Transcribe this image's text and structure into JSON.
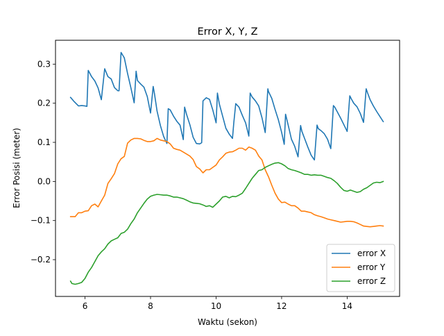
{
  "chart_data": {
    "type": "line",
    "title": "Error X, Y, Z",
    "xlabel": "Waktu (sekon)",
    "ylabel": "Error Posisi (meter)",
    "xlim": [
      5.1,
      15.6
    ],
    "ylim": [
      -0.294,
      0.361
    ],
    "xticks": [
      6,
      8,
      10,
      12,
      14
    ],
    "yticks": [
      -0.2,
      -0.1,
      0.0,
      0.1,
      0.2,
      0.3
    ],
    "ytick_labels": [
      "−0.2",
      "−0.1",
      "0.0",
      "0.1",
      "0.2",
      "0.3"
    ],
    "grid": false,
    "legend_position": "lower-right",
    "series": [
      {
        "name": "error X",
        "color": "#1f77b4",
        "x": [
          5.56,
          5.66,
          5.8,
          5.9,
          6.0,
          6.06,
          6.1,
          6.2,
          6.3,
          6.4,
          6.5,
          6.6,
          6.7,
          6.8,
          6.9,
          7.0,
          7.04,
          7.1,
          7.2,
          7.3,
          7.4,
          7.5,
          7.56,
          7.6,
          7.7,
          7.8,
          7.9,
          8.0,
          8.08,
          8.12,
          8.2,
          8.3,
          8.4,
          8.5,
          8.54,
          8.6,
          8.7,
          8.8,
          8.9,
          9.0,
          9.04,
          9.1,
          9.2,
          9.3,
          9.4,
          9.5,
          9.56,
          9.6,
          9.7,
          9.8,
          9.9,
          10.0,
          10.04,
          10.1,
          10.2,
          10.3,
          10.4,
          10.5,
          10.54,
          10.6,
          10.7,
          10.8,
          10.9,
          11.0,
          11.04,
          11.1,
          11.2,
          11.3,
          11.4,
          11.5,
          11.58,
          11.6,
          11.7,
          11.8,
          11.9,
          12.0,
          12.08,
          12.12,
          12.2,
          12.3,
          12.4,
          12.5,
          12.58,
          12.62,
          12.7,
          12.8,
          12.9,
          13.0,
          13.08,
          13.12,
          13.2,
          13.3,
          13.4,
          13.5,
          13.58,
          13.62,
          13.7,
          13.8,
          13.9,
          14.0,
          14.08,
          14.12,
          14.2,
          14.3,
          14.4,
          14.5,
          14.58,
          14.62,
          14.7,
          14.8,
          14.9,
          15.0,
          15.1
        ],
        "y": [
          0.215,
          0.205,
          0.193,
          0.194,
          0.193,
          0.192,
          0.284,
          0.268,
          0.257,
          0.239,
          0.209,
          0.288,
          0.268,
          0.262,
          0.24,
          0.232,
          0.232,
          0.33,
          0.316,
          0.276,
          0.24,
          0.201,
          0.282,
          0.258,
          0.249,
          0.241,
          0.217,
          0.175,
          0.243,
          0.224,
          0.18,
          0.143,
          0.115,
          0.097,
          0.186,
          0.183,
          0.167,
          0.154,
          0.144,
          0.107,
          0.19,
          0.171,
          0.145,
          0.113,
          0.097,
          0.096,
          0.099,
          0.206,
          0.214,
          0.21,
          0.183,
          0.15,
          0.226,
          0.198,
          0.167,
          0.136,
          0.121,
          0.11,
          0.15,
          0.199,
          0.19,
          0.169,
          0.15,
          0.116,
          0.226,
          0.216,
          0.206,
          0.193,
          0.163,
          0.125,
          0.237,
          0.23,
          0.212,
          0.184,
          0.158,
          0.126,
          0.095,
          0.172,
          0.144,
          0.108,
          0.09,
          0.063,
          0.143,
          0.128,
          0.11,
          0.088,
          0.067,
          0.055,
          0.144,
          0.135,
          0.13,
          0.122,
          0.108,
          0.084,
          0.194,
          0.19,
          0.178,
          0.162,
          0.145,
          0.128,
          0.219,
          0.212,
          0.2,
          0.191,
          0.174,
          0.151,
          0.237,
          0.227,
          0.209,
          0.193,
          0.179,
          0.166,
          0.153
        ]
      },
      {
        "name": "error Y",
        "color": "#ff7f0e",
        "x": [
          5.56,
          5.7,
          5.8,
          5.9,
          6.0,
          6.1,
          6.2,
          6.3,
          6.4,
          6.5,
          6.6,
          6.7,
          6.8,
          6.9,
          7.0,
          7.1,
          7.2,
          7.3,
          7.4,
          7.5,
          7.6,
          7.7,
          7.8,
          7.9,
          8.0,
          8.1,
          8.2,
          8.3,
          8.4,
          8.5,
          8.6,
          8.7,
          8.8,
          8.9,
          9.0,
          9.1,
          9.2,
          9.3,
          9.4,
          9.5,
          9.6,
          9.7,
          9.8,
          9.9,
          10.0,
          10.1,
          10.2,
          10.3,
          10.4,
          10.5,
          10.6,
          10.7,
          10.8,
          10.9,
          11.0,
          11.1,
          11.2,
          11.3,
          11.4,
          11.5,
          11.6,
          11.7,
          11.8,
          11.9,
          12.0,
          12.1,
          12.2,
          12.3,
          12.4,
          12.5,
          12.6,
          12.7,
          12.8,
          12.9,
          13.0,
          13.1,
          13.2,
          13.3,
          13.4,
          13.5,
          13.6,
          13.7,
          13.8,
          13.9,
          14.0,
          14.1,
          14.2,
          14.3,
          14.4,
          14.5,
          14.6,
          14.7,
          14.8,
          14.9,
          15.0,
          15.1
        ],
        "y": [
          -0.09,
          -0.09,
          -0.08,
          -0.08,
          -0.076,
          -0.075,
          -0.062,
          -0.058,
          -0.065,
          -0.05,
          -0.035,
          -0.005,
          0.007,
          0.02,
          0.045,
          0.058,
          0.064,
          0.098,
          0.106,
          0.11,
          0.11,
          0.109,
          0.105,
          0.102,
          0.102,
          0.104,
          0.11,
          0.106,
          0.104,
          0.102,
          0.096,
          0.085,
          0.082,
          0.08,
          0.075,
          0.07,
          0.065,
          0.056,
          0.038,
          0.032,
          0.022,
          0.03,
          0.03,
          0.036,
          0.042,
          0.055,
          0.063,
          0.072,
          0.075,
          0.076,
          0.08,
          0.085,
          0.085,
          0.08,
          0.088,
          0.085,
          0.08,
          0.065,
          0.055,
          0.03,
          0.012,
          -0.01,
          -0.03,
          -0.045,
          -0.054,
          -0.053,
          -0.058,
          -0.062,
          -0.062,
          -0.068,
          -0.076,
          -0.076,
          -0.078,
          -0.08,
          -0.085,
          -0.088,
          -0.09,
          -0.093,
          -0.096,
          -0.098,
          -0.1,
          -0.102,
          -0.104,
          -0.103,
          -0.102,
          -0.102,
          -0.103,
          -0.106,
          -0.11,
          -0.114,
          -0.115,
          -0.116,
          -0.115,
          -0.114,
          -0.113,
          -0.114
        ]
      },
      {
        "name": "error Z",
        "color": "#2ca02c",
        "x": [
          5.56,
          5.6,
          5.7,
          5.8,
          5.9,
          6.0,
          6.1,
          6.2,
          6.3,
          6.4,
          6.5,
          6.6,
          6.7,
          6.8,
          6.9,
          7.0,
          7.1,
          7.2,
          7.3,
          7.4,
          7.5,
          7.6,
          7.7,
          7.8,
          7.9,
          8.0,
          8.1,
          8.2,
          8.3,
          8.4,
          8.5,
          8.6,
          8.7,
          8.8,
          8.9,
          9.0,
          9.1,
          9.2,
          9.3,
          9.4,
          9.5,
          9.6,
          9.7,
          9.8,
          9.9,
          10.0,
          10.1,
          10.2,
          10.3,
          10.4,
          10.5,
          10.6,
          10.7,
          10.8,
          10.9,
          11.0,
          11.1,
          11.2,
          11.3,
          11.4,
          11.5,
          11.6,
          11.7,
          11.8,
          11.9,
          12.0,
          12.1,
          12.2,
          12.3,
          12.4,
          12.5,
          12.6,
          12.7,
          12.8,
          12.9,
          13.0,
          13.1,
          13.2,
          13.3,
          13.4,
          13.5,
          13.6,
          13.7,
          13.8,
          13.9,
          14.0,
          14.1,
          14.2,
          14.3,
          14.4,
          14.5,
          14.6,
          14.7,
          14.8,
          14.9,
          15.0,
          15.1
        ],
        "y": [
          -0.255,
          -0.261,
          -0.263,
          -0.261,
          -0.258,
          -0.248,
          -0.232,
          -0.22,
          -0.205,
          -0.19,
          -0.18,
          -0.172,
          -0.16,
          -0.152,
          -0.148,
          -0.144,
          -0.133,
          -0.13,
          -0.122,
          -0.108,
          -0.096,
          -0.08,
          -0.068,
          -0.056,
          -0.045,
          -0.038,
          -0.035,
          -0.033,
          -0.034,
          -0.035,
          -0.035,
          -0.037,
          -0.04,
          -0.04,
          -0.042,
          -0.044,
          -0.048,
          -0.052,
          -0.055,
          -0.056,
          -0.057,
          -0.06,
          -0.064,
          -0.062,
          -0.066,
          -0.058,
          -0.05,
          -0.04,
          -0.038,
          -0.042,
          -0.038,
          -0.039,
          -0.035,
          -0.03,
          -0.018,
          -0.005,
          0.008,
          0.018,
          0.028,
          0.03,
          0.036,
          0.04,
          0.044,
          0.047,
          0.048,
          0.045,
          0.04,
          0.033,
          0.03,
          0.028,
          0.025,
          0.022,
          0.018,
          0.018,
          0.016,
          0.017,
          0.016,
          0.016,
          0.013,
          0.01,
          0.008,
          0.002,
          -0.005,
          -0.015,
          -0.023,
          -0.025,
          -0.022,
          -0.025,
          -0.028,
          -0.026,
          -0.02,
          -0.016,
          -0.01,
          -0.004,
          -0.002,
          -0.003,
          0.0
        ]
      }
    ]
  }
}
